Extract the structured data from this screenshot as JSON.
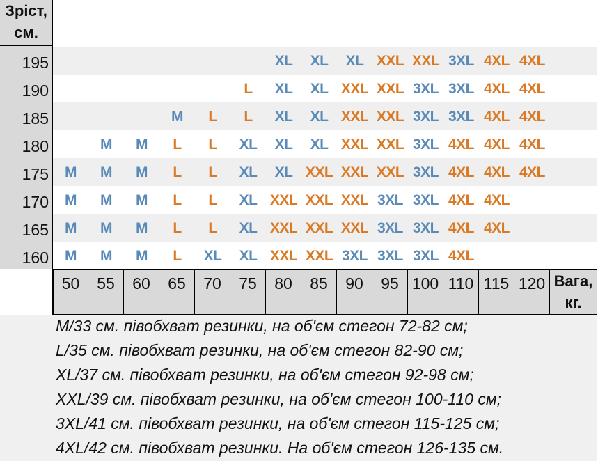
{
  "height_header": [
    "Зріст,",
    "см."
  ],
  "weight_header": [
    "Вага,",
    "кг."
  ],
  "weights": [
    "50",
    "55",
    "60",
    "65",
    "70",
    "75",
    "80",
    "85",
    "90",
    "95",
    "100",
    "110",
    "115",
    "120"
  ],
  "rows": [
    {
      "height": "195",
      "sizes": [
        "",
        "",
        "",
        "",
        "",
        "",
        "XL",
        "XL",
        "XL",
        "XXL",
        "XXL",
        "3XL",
        "4XL",
        "4XL"
      ]
    },
    {
      "height": "190",
      "sizes": [
        "",
        "",
        "",
        "",
        "",
        "L",
        "XL",
        "XL",
        "XXL",
        "XXL",
        "3XL",
        "3XL",
        "4XL",
        "4XL"
      ]
    },
    {
      "height": "185",
      "sizes": [
        "",
        "",
        "",
        "M",
        "L",
        "L",
        "XL",
        "XL",
        "XXL",
        "XXL",
        "3XL",
        "3XL",
        "4XL",
        "4XL"
      ]
    },
    {
      "height": "180",
      "sizes": [
        "",
        "M",
        "M",
        "L",
        "L",
        "XL",
        "XL",
        "XL",
        "XXL",
        "XXL",
        "3XL",
        "4XL",
        "4XL",
        "4XL"
      ]
    },
    {
      "height": "175",
      "sizes": [
        "M",
        "M",
        "M",
        "L",
        "L",
        "XL",
        "XL",
        "XXL",
        "XXL",
        "XXL",
        "3XL",
        "4XL",
        "4XL",
        "4XL"
      ]
    },
    {
      "height": "170",
      "sizes": [
        "M",
        "M",
        "M",
        "L",
        "L",
        "XL",
        "XXL",
        "XXL",
        "XXL",
        "3XL",
        "3XL",
        "4XL",
        "4XL",
        ""
      ]
    },
    {
      "height": "165",
      "sizes": [
        "M",
        "M",
        "M",
        "L",
        "L",
        "XL",
        "XXL",
        "XXL",
        "XXL",
        "3XL",
        "3XL",
        "4XL",
        "4XL",
        ""
      ]
    },
    {
      "height": "160",
      "sizes": [
        "M",
        "M",
        "M",
        "L",
        "XL",
        "XL",
        "XXL",
        "XXL",
        "3XL",
        "3XL",
        "3XL",
        "4XL",
        "",
        ""
      ]
    }
  ],
  "size_colors": {
    "M": "#5a8ab8",
    "XL": "#5a8ab8",
    "3XL": "#5a8ab8",
    "L": "#d97a26",
    "XXL": "#d97a26",
    "4XL": "#d97a26"
  },
  "legend": [
    "M/33 см. півобхват резинки, на об'єм стегон 72-82 см;",
    "L/35 см. півобхват резинки, на об'єм стегон 82-90 см;",
    "XL/37 см. півобхват резинки, на об'єм стегон 92-98 см;",
    "XXL/39 см. півобхват резинки, на об'єм стегон 100-110 см;",
    "3XL/41 см. півобхват резинки, на об'єм стегон 115-125 см;",
    "4XL/42 см. півобхват резинки. На об'єм стегон 126-135 см."
  ]
}
